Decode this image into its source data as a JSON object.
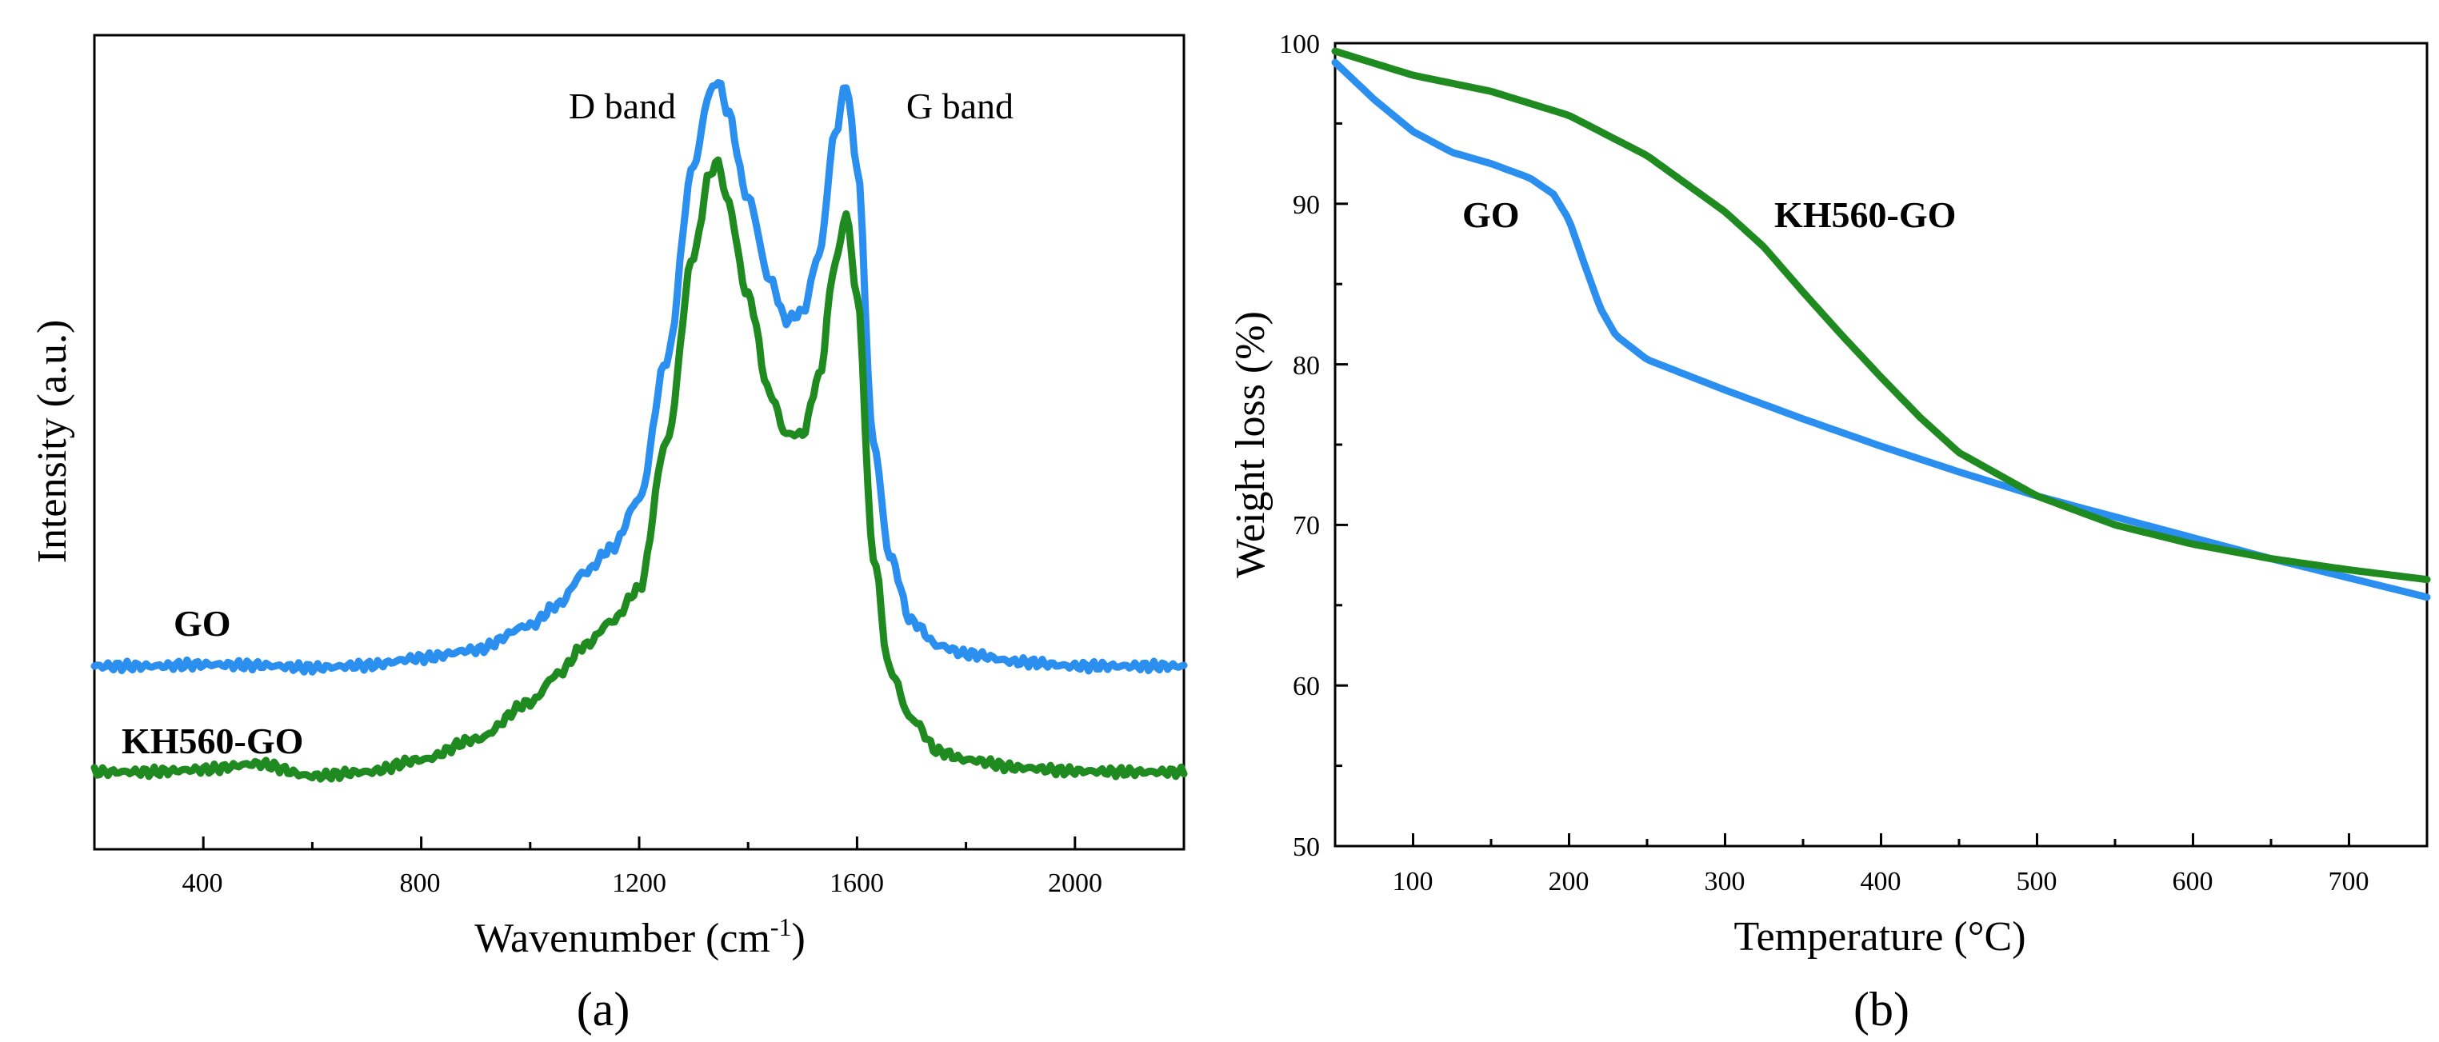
{
  "colors": {
    "blue": "#2b8ff0",
    "green": "#1f8a1f",
    "axis": "#000000"
  },
  "chart_data": [
    {
      "type": "line",
      "panel_label": "(a)",
      "title": "",
      "xlabel_main": "Wavenumber (cm",
      "xlabel_sup": "-1",
      "xlabel_close": ")",
      "ylabel": "Intensity (a.u.)",
      "xlim": [
        200,
        2200
      ],
      "ylim": [
        0,
        100
      ],
      "xticks": [
        400,
        800,
        1200,
        1600,
        2000
      ],
      "annotations": {
        "d_band": "D band",
        "g_band": "G band"
      },
      "series": [
        {
          "name": "GO",
          "color": "#2b8ff0",
          "x": [
            200,
            300,
            400,
            500,
            600,
            700,
            800,
            900,
            1000,
            1050,
            1100,
            1150,
            1200,
            1250,
            1300,
            1330,
            1345,
            1360,
            1400,
            1440,
            1470,
            1500,
            1530,
            1560,
            1580,
            1600,
            1630,
            1660,
            1700,
            1750,
            1800,
            1900,
            2000,
            2100,
            2200
          ],
          "y": [
            22.5,
            22.5,
            22.7,
            22.6,
            22.3,
            22.6,
            23.5,
            24.5,
            27.5,
            30,
            34,
            37,
            43,
            60,
            84,
            93,
            94.5,
            91,
            80,
            70,
            65,
            66,
            73,
            88,
            94,
            84,
            50,
            36,
            28,
            25,
            24,
            23,
            22.5,
            22.5,
            22.5
          ]
        },
        {
          "name": "KH560-GO",
          "color": "#1f8a1f",
          "x": [
            200,
            300,
            400,
            500,
            600,
            700,
            800,
            900,
            1000,
            1050,
            1100,
            1150,
            1200,
            1250,
            1300,
            1330,
            1345,
            1360,
            1400,
            1440,
            1470,
            1500,
            1530,
            1560,
            1580,
            1600,
            1630,
            1660,
            1700,
            1750,
            1800,
            1900,
            2000,
            2100,
            2200
          ],
          "y": [
            9.5,
            9.5,
            9.8,
            10.5,
            9,
            9.5,
            11,
            13.5,
            18,
            21.5,
            25,
            28,
            32,
            50,
            73,
            83,
            84.5,
            80,
            68,
            56,
            51,
            51,
            58,
            72,
            78,
            68,
            36,
            22,
            16,
            12,
            11,
            10,
            9.6,
            9.5,
            9.5
          ]
        }
      ]
    },
    {
      "type": "line",
      "panel_label": "(b)",
      "title": "",
      "xlabel": "Temperature (°C)",
      "ylabel": "Weight loss (%)",
      "xlim": [
        50,
        750
      ],
      "ylim": [
        50,
        100
      ],
      "xticks": [
        100,
        200,
        300,
        400,
        500,
        600,
        700
      ],
      "yticks": [
        50,
        60,
        70,
        80,
        90,
        100
      ],
      "series": [
        {
          "name": "GO",
          "color": "#2b8ff0",
          "x": [
            50,
            75,
            100,
            125,
            150,
            175,
            190,
            200,
            210,
            220,
            230,
            250,
            300,
            350,
            400,
            450,
            500,
            550,
            600,
            650,
            700,
            750
          ],
          "y": [
            98.8,
            96.5,
            94.5,
            93.2,
            92.5,
            91.6,
            90.6,
            89.0,
            86.2,
            83.5,
            81.8,
            80.3,
            78.4,
            76.6,
            74.9,
            73.3,
            71.8,
            70.5,
            69.2,
            67.9,
            66.7,
            65.5
          ]
        },
        {
          "name": "KH560-GO",
          "color": "#1f8a1f",
          "x": [
            50,
            100,
            150,
            200,
            250,
            300,
            325,
            350,
            375,
            400,
            425,
            450,
            500,
            550,
            600,
            650,
            700,
            750
          ],
          "y": [
            99.5,
            98,
            97,
            95.5,
            93,
            89.5,
            87.3,
            84.5,
            81.8,
            79.2,
            76.7,
            74.5,
            71.8,
            70,
            68.8,
            67.9,
            67.2,
            66.6
          ]
        }
      ]
    }
  ]
}
